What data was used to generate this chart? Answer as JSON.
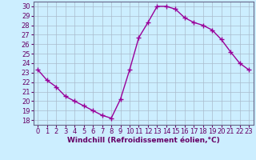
{
  "x": [
    0,
    1,
    2,
    3,
    4,
    5,
    6,
    7,
    8,
    9,
    10,
    11,
    12,
    13,
    14,
    15,
    16,
    17,
    18,
    19,
    20,
    21,
    22,
    23
  ],
  "y": [
    23.3,
    22.2,
    21.5,
    20.5,
    20.0,
    19.5,
    19.0,
    18.5,
    18.2,
    20.2,
    23.3,
    26.7,
    28.3,
    30.0,
    30.0,
    29.7,
    28.8,
    28.3,
    28.0,
    27.5,
    26.5,
    25.2,
    24.0,
    23.3
  ],
  "line_color": "#990099",
  "marker": "+",
  "marker_size": 4,
  "bg_color": "#cceeff",
  "grid_color": "#aabbcc",
  "xlabel": "Windchill (Refroidissement éolien,°C)",
  "xlim": [
    -0.5,
    23.5
  ],
  "ylim": [
    17.5,
    30.5
  ],
  "yticks": [
    18,
    19,
    20,
    21,
    22,
    23,
    24,
    25,
    26,
    27,
    28,
    29,
    30
  ],
  "xticks": [
    0,
    1,
    2,
    3,
    4,
    5,
    6,
    7,
    8,
    9,
    10,
    11,
    12,
    13,
    14,
    15,
    16,
    17,
    18,
    19,
    20,
    21,
    22,
    23
  ],
  "xlabel_fontsize": 6.5,
  "tick_fontsize": 6,
  "line_width": 1.0,
  "spine_color": "#666688",
  "text_color": "#660066"
}
